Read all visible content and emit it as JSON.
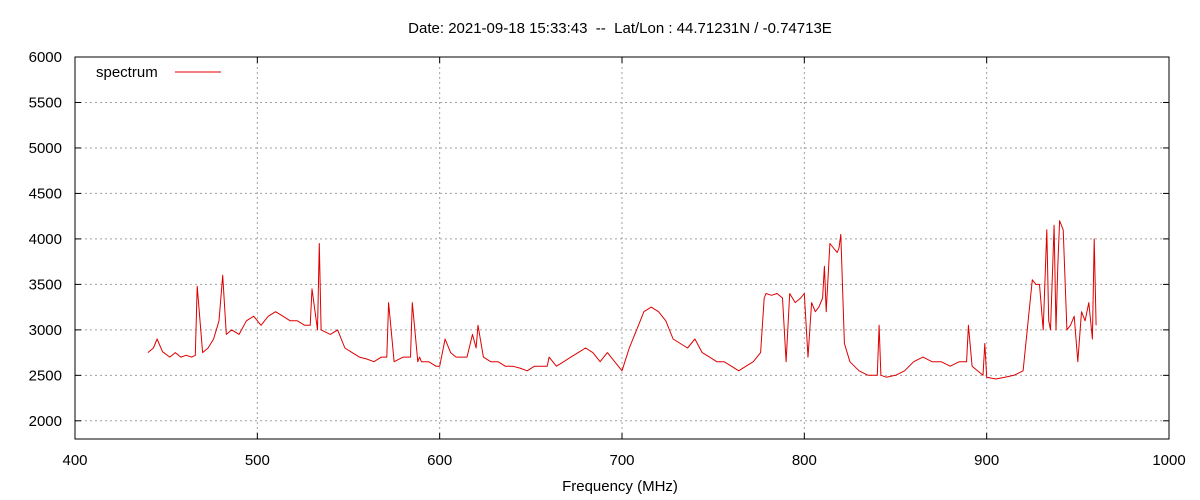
{
  "chart_data": {
    "type": "line",
    "title": "Date: 2021-09-18 15:33:43  --  Lat/Lon : 44.71231N / -0.74713E",
    "xlabel": "Frequency (MHz)",
    "ylabel": "",
    "xlim": [
      400,
      1000
    ],
    "ylim": [
      1800,
      6000
    ],
    "xticks": [
      400,
      500,
      600,
      700,
      800,
      900,
      1000
    ],
    "yticks": [
      2000,
      2500,
      3000,
      3500,
      4000,
      4500,
      5000,
      5500,
      6000
    ],
    "grid": true,
    "legend_position": "top-left",
    "series": [
      {
        "name": "spectrum",
        "color": "#dd0000",
        "x": [
          440,
          443,
          445,
          448,
          452,
          455,
          458,
          461,
          464,
          466,
          467,
          470,
          473,
          476,
          479,
          481,
          483,
          486,
          490,
          494,
          498,
          502,
          506,
          510,
          514,
          518,
          522,
          526,
          529,
          530,
          533,
          534,
          535,
          540,
          544,
          548,
          552,
          556,
          560,
          564,
          568,
          571,
          572,
          575,
          580,
          584,
          585,
          588,
          589,
          590,
          594,
          598,
          600,
          603,
          606,
          609,
          612,
          615,
          618,
          620,
          621,
          624,
          628,
          632,
          636,
          640,
          644,
          648,
          652,
          656,
          659,
          660,
          664,
          668,
          672,
          676,
          680,
          684,
          688,
          692,
          696,
          700,
          704,
          708,
          712,
          716,
          720,
          722,
          724,
          728,
          732,
          736,
          740,
          744,
          748,
          752,
          756,
          760,
          764,
          768,
          772,
          776,
          778,
          779,
          782,
          785,
          788,
          790,
          792,
          795,
          798,
          800,
          802,
          804,
          806,
          808,
          810,
          811,
          812,
          814,
          816,
          818,
          819,
          820,
          822,
          825,
          830,
          835,
          840,
          841,
          842,
          845,
          850,
          855,
          860,
          865,
          870,
          875,
          880,
          885,
          889,
          890,
          892,
          895,
          898,
          899,
          900,
          905,
          910,
          915,
          920,
          925,
          927,
          929,
          931,
          933,
          934,
          935,
          937,
          938,
          939,
          940,
          942,
          944,
          946,
          948,
          950,
          952,
          954,
          956,
          958,
          959,
          960
        ],
        "y": [
          2750,
          2800,
          2900,
          2760,
          2700,
          2750,
          2700,
          2720,
          2700,
          2720,
          3480,
          2750,
          2800,
          2900,
          3100,
          3600,
          2950,
          3000,
          2950,
          3100,
          3150,
          3050,
          3150,
          3200,
          3150,
          3100,
          3100,
          3050,
          3050,
          3450,
          3000,
          3950,
          3000,
          2950,
          3000,
          2800,
          2750,
          2700,
          2680,
          2650,
          2700,
          2700,
          3300,
          2650,
          2700,
          2700,
          3300,
          2650,
          2700,
          2650,
          2650,
          2600,
          2600,
          2900,
          2750,
          2700,
          2700,
          2700,
          2950,
          2800,
          3050,
          2700,
          2650,
          2650,
          2600,
          2600,
          2580,
          2550,
          2600,
          2600,
          2600,
          2700,
          2600,
          2650,
          2700,
          2750,
          2800,
          2750,
          2650,
          2750,
          2650,
          2550,
          2800,
          3000,
          3200,
          3250,
          3200,
          3150,
          3100,
          2900,
          2850,
          2800,
          2900,
          2750,
          2700,
          2650,
          2650,
          2600,
          2550,
          2600,
          2650,
          2750,
          3350,
          3400,
          3380,
          3400,
          3350,
          2650,
          3400,
          3300,
          3350,
          3400,
          2700,
          3300,
          3200,
          3250,
          3350,
          3700,
          3200,
          3950,
          3900,
          3850,
          3900,
          4050,
          2850,
          2650,
          2550,
          2500,
          2500,
          3050,
          2500,
          2480,
          2500,
          2550,
          2650,
          2700,
          2650,
          2650,
          2600,
          2650,
          2650,
          3050,
          2600,
          2550,
          2500,
          2850,
          2480,
          2460,
          2480,
          2500,
          2550,
          3550,
          3500,
          3500,
          3000,
          4100,
          3100,
          3000,
          4150,
          3000,
          3700,
          4200,
          4100,
          3000,
          3050,
          3150,
          2650,
          3200,
          3100,
          3300,
          2900,
          4000,
          3050
        ]
      }
    ]
  }
}
